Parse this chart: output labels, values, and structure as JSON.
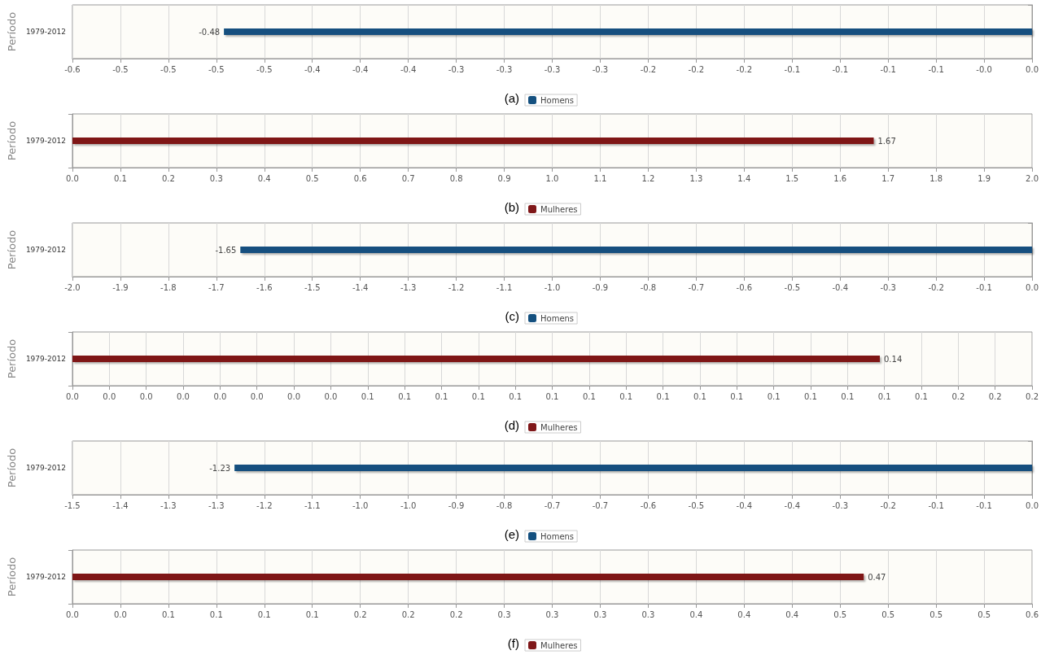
{
  "chart_data": [
    {
      "type": "bar",
      "orientation": "horizontal",
      "ylabel": "Período",
      "categories": [
        "1979-2012"
      ],
      "legend": "bottom",
      "grid": "x",
      "data_labels": true,
      "annotations": [
        "(a)"
      ],
      "series": [
        {
          "name": "Homens",
          "color": "#14507f",
          "values": [
            -0.48
          ]
        }
      ],
      "xlim": [
        -0.57,
        0
      ],
      "xticks": [
        {
          "value": -0.57,
          "label": "-0.6"
        },
        {
          "value": -0.5415,
          "label": "-0.5"
        },
        {
          "value": -0.513,
          "label": "-0.5"
        },
        {
          "value": -0.4845,
          "label": "-0.5"
        },
        {
          "value": -0.456,
          "label": "-0.5"
        },
        {
          "value": -0.4275,
          "label": "-0.4"
        },
        {
          "value": -0.399,
          "label": "-0.4"
        },
        {
          "value": -0.3705,
          "label": "-0.4"
        },
        {
          "value": -0.342,
          "label": "-0.3"
        },
        {
          "value": -0.3135,
          "label": "-0.3"
        },
        {
          "value": -0.285,
          "label": "-0.3"
        },
        {
          "value": -0.2565,
          "label": "-0.3"
        },
        {
          "value": -0.228,
          "label": "-0.2"
        },
        {
          "value": -0.1995,
          "label": "-0.2"
        },
        {
          "value": -0.171,
          "label": "-0.2"
        },
        {
          "value": -0.1425,
          "label": "-0.1"
        },
        {
          "value": -0.114,
          "label": "-0.1"
        },
        {
          "value": -0.0855,
          "label": "-0.1"
        },
        {
          "value": -0.057,
          "label": "-0.1"
        },
        {
          "value": -0.0285,
          "label": "-0.0"
        },
        {
          "value": 0,
          "label": "0.0"
        }
      ]
    },
    {
      "type": "bar",
      "orientation": "horizontal",
      "ylabel": "Período",
      "categories": [
        "1979-2012"
      ],
      "legend": "bottom",
      "grid": "x",
      "data_labels": true,
      "annotations": [
        "(b)"
      ],
      "series": [
        {
          "name": "Mulheres",
          "color": "#7f1719",
          "values": [
            1.67
          ]
        }
      ],
      "xlim": [
        0,
        2
      ],
      "xticks": [
        {
          "value": 0,
          "label": "0.0"
        },
        {
          "value": 0.1,
          "label": "0.1"
        },
        {
          "value": 0.2,
          "label": "0.2"
        },
        {
          "value": 0.3,
          "label": "0.3"
        },
        {
          "value": 0.4,
          "label": "0.4"
        },
        {
          "value": 0.5,
          "label": "0.5"
        },
        {
          "value": 0.6,
          "label": "0.6"
        },
        {
          "value": 0.7,
          "label": "0.7"
        },
        {
          "value": 0.8,
          "label": "0.8"
        },
        {
          "value": 0.9,
          "label": "0.9"
        },
        {
          "value": 1,
          "label": "1.0"
        },
        {
          "value": 1.1,
          "label": "1.1"
        },
        {
          "value": 1.2,
          "label": "1.2"
        },
        {
          "value": 1.3,
          "label": "1.3"
        },
        {
          "value": 1.4,
          "label": "1.4"
        },
        {
          "value": 1.5,
          "label": "1.5"
        },
        {
          "value": 1.6,
          "label": "1.6"
        },
        {
          "value": 1.7,
          "label": "1.7"
        },
        {
          "value": 1.8,
          "label": "1.8"
        },
        {
          "value": 1.9,
          "label": "1.9"
        },
        {
          "value": 2,
          "label": "2.0"
        }
      ]
    },
    {
      "type": "bar",
      "orientation": "horizontal",
      "ylabel": "Período",
      "categories": [
        "1979-2012"
      ],
      "legend": "bottom",
      "grid": "x",
      "data_labels": true,
      "annotations": [
        "(c)"
      ],
      "series": [
        {
          "name": "Homens",
          "color": "#14507f",
          "values": [
            -1.65
          ]
        }
      ],
      "xlim": [
        -2,
        0
      ],
      "xticks": [
        {
          "value": -2,
          "label": "-2.0"
        },
        {
          "value": -1.9,
          "label": "-1.9"
        },
        {
          "value": -1.8,
          "label": "-1.8"
        },
        {
          "value": -1.7,
          "label": "-1.7"
        },
        {
          "value": -1.6,
          "label": "-1.6"
        },
        {
          "value": -1.5,
          "label": "-1.5"
        },
        {
          "value": -1.4,
          "label": "-1.4"
        },
        {
          "value": -1.3,
          "label": "-1.3"
        },
        {
          "value": -1.2,
          "label": "-1.2"
        },
        {
          "value": -1.1,
          "label": "-1.1"
        },
        {
          "value": -1,
          "label": "-1.0"
        },
        {
          "value": -0.9,
          "label": "-0.9"
        },
        {
          "value": -0.8,
          "label": "-0.8"
        },
        {
          "value": -0.7,
          "label": "-0.7"
        },
        {
          "value": -0.6,
          "label": "-0.6"
        },
        {
          "value": -0.5,
          "label": "-0.5"
        },
        {
          "value": -0.4,
          "label": "-0.4"
        },
        {
          "value": -0.3,
          "label": "-0.3"
        },
        {
          "value": -0.2,
          "label": "-0.2"
        },
        {
          "value": -0.1,
          "label": "-0.1"
        },
        {
          "value": 0,
          "label": "0.0"
        }
      ]
    },
    {
      "type": "bar",
      "orientation": "horizontal",
      "ylabel": "Período",
      "categories": [
        "1979-2012"
      ],
      "legend": "bottom",
      "grid": "x",
      "data_labels": true,
      "annotations": [
        "(d)"
      ],
      "series": [
        {
          "name": "Mulheres",
          "color": "#7f1719",
          "values": [
            0.14
          ]
        }
      ],
      "xlim": [
        0,
        0.1664
      ],
      "xticks": [
        {
          "value": 0,
          "label": "0.0"
        },
        {
          "value": 0.0064,
          "label": "0.0"
        },
        {
          "value": 0.0128,
          "label": "0.0"
        },
        {
          "value": 0.0192,
          "label": "0.0"
        },
        {
          "value": 0.0256,
          "label": "0.0"
        },
        {
          "value": 0.032,
          "label": "0.0"
        },
        {
          "value": 0.0384,
          "label": "0.0"
        },
        {
          "value": 0.0448,
          "label": "0.0"
        },
        {
          "value": 0.0512,
          "label": "0.1"
        },
        {
          "value": 0.0576,
          "label": "0.1"
        },
        {
          "value": 0.064,
          "label": "0.1"
        },
        {
          "value": 0.0704,
          "label": "0.1"
        },
        {
          "value": 0.0768,
          "label": "0.1"
        },
        {
          "value": 0.0832,
          "label": "0.1"
        },
        {
          "value": 0.0896,
          "label": "0.1"
        },
        {
          "value": 0.096,
          "label": "0.1"
        },
        {
          "value": 0.1024,
          "label": "0.1"
        },
        {
          "value": 0.1088,
          "label": "0.1"
        },
        {
          "value": 0.1152,
          "label": "0.1"
        },
        {
          "value": 0.1216,
          "label": "0.1"
        },
        {
          "value": 0.128,
          "label": "0.1"
        },
        {
          "value": 0.1344,
          "label": "0.1"
        },
        {
          "value": 0.1408,
          "label": "0.1"
        },
        {
          "value": 0.1472,
          "label": "0.1"
        },
        {
          "value": 0.1536,
          "label": "0.2"
        },
        {
          "value": 0.16,
          "label": "0.2"
        },
        {
          "value": 0.1664,
          "label": "0.2"
        }
      ]
    },
    {
      "type": "bar",
      "orientation": "horizontal",
      "ylabel": "Período",
      "categories": [
        "1979-2012"
      ],
      "legend": "bottom",
      "grid": "x",
      "data_labels": true,
      "annotations": [
        "(e)"
      ],
      "series": [
        {
          "name": "Homens",
          "color": "#14507f",
          "values": [
            -1.23
          ]
        }
      ],
      "xlim": [
        -1.48,
        0
      ],
      "xticks": [
        {
          "value": -1.48,
          "label": "-1.5"
        },
        {
          "value": -1.406,
          "label": "-1.4"
        },
        {
          "value": -1.332,
          "label": "-1.3"
        },
        {
          "value": -1.258,
          "label": "-1.3"
        },
        {
          "value": -1.184,
          "label": "-1.2"
        },
        {
          "value": -1.11,
          "label": "-1.1"
        },
        {
          "value": -1.036,
          "label": "-1.0"
        },
        {
          "value": -0.962,
          "label": "-1.0"
        },
        {
          "value": -0.888,
          "label": "-0.9"
        },
        {
          "value": -0.814,
          "label": "-0.8"
        },
        {
          "value": -0.74,
          "label": "-0.7"
        },
        {
          "value": -0.666,
          "label": "-0.7"
        },
        {
          "value": -0.592,
          "label": "-0.6"
        },
        {
          "value": -0.518,
          "label": "-0.5"
        },
        {
          "value": -0.444,
          "label": "-0.4"
        },
        {
          "value": -0.37,
          "label": "-0.4"
        },
        {
          "value": -0.296,
          "label": "-0.3"
        },
        {
          "value": -0.222,
          "label": "-0.2"
        },
        {
          "value": -0.148,
          "label": "-0.1"
        },
        {
          "value": -0.074,
          "label": "-0.1"
        },
        {
          "value": 0,
          "label": "0.0"
        }
      ]
    },
    {
      "type": "bar",
      "orientation": "horizontal",
      "ylabel": "Período",
      "categories": [
        "1979-2012"
      ],
      "legend": "bottom",
      "grid": "x",
      "data_labels": true,
      "annotations": [
        "(f)"
      ],
      "series": [
        {
          "name": "Mulheres",
          "color": "#7f1719",
          "values": [
            0.47
          ]
        }
      ],
      "xlim": [
        0,
        0.57
      ],
      "xticks": [
        {
          "value": 0,
          "label": "0.0"
        },
        {
          "value": 0.0285,
          "label": "0.0"
        },
        {
          "value": 0.057,
          "label": "0.1"
        },
        {
          "value": 0.0855,
          "label": "0.1"
        },
        {
          "value": 0.114,
          "label": "0.1"
        },
        {
          "value": 0.1425,
          "label": "0.1"
        },
        {
          "value": 0.171,
          "label": "0.2"
        },
        {
          "value": 0.1995,
          "label": "0.2"
        },
        {
          "value": 0.228,
          "label": "0.2"
        },
        {
          "value": 0.2565,
          "label": "0.3"
        },
        {
          "value": 0.285,
          "label": "0.3"
        },
        {
          "value": 0.3135,
          "label": "0.3"
        },
        {
          "value": 0.342,
          "label": "0.3"
        },
        {
          "value": 0.3705,
          "label": "0.4"
        },
        {
          "value": 0.399,
          "label": "0.4"
        },
        {
          "value": 0.4275,
          "label": "0.4"
        },
        {
          "value": 0.456,
          "label": "0.5"
        },
        {
          "value": 0.4845,
          "label": "0.5"
        },
        {
          "value": 0.513,
          "label": "0.5"
        },
        {
          "value": 0.5415,
          "label": "0.5"
        },
        {
          "value": 0.57,
          "label": "0.6"
        }
      ]
    }
  ]
}
